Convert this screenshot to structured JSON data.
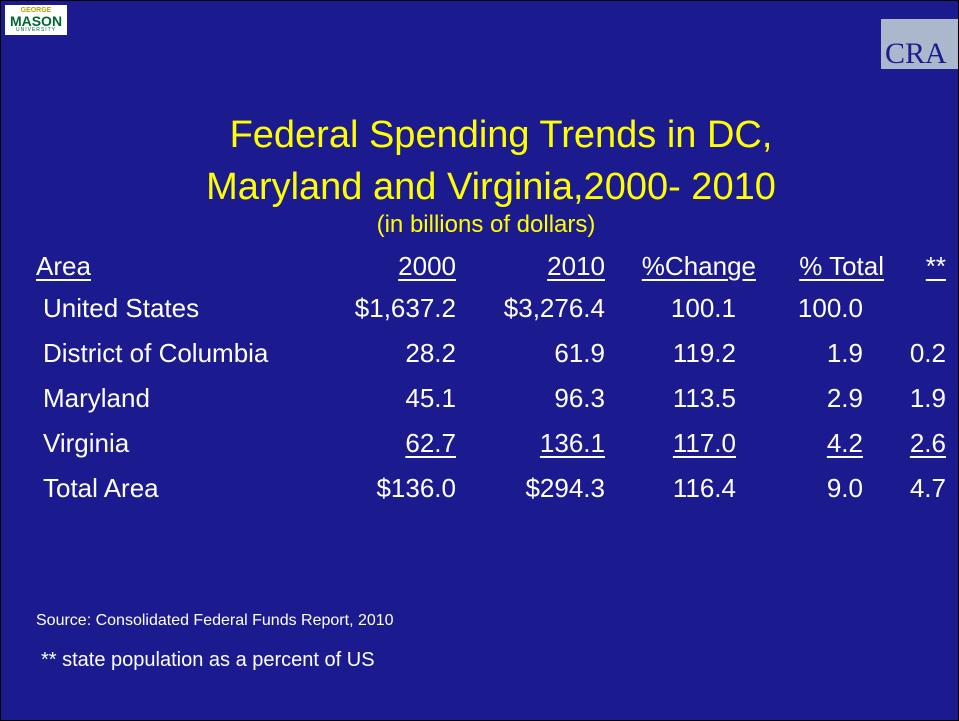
{
  "logos": {
    "left": {
      "top": "GEORGE",
      "main": "MASON",
      "bottom": "UNIVERSITY"
    },
    "right": "CRA"
  },
  "title": {
    "line1": "Federal Spending Trends in DC,",
    "line2": "Maryland and Virginia,2000- 2010",
    "subtitle": "(in billions of dollars)"
  },
  "table": {
    "header": [
      "Area",
      "2000",
      "2010",
      "%Change",
      "% Total",
      "**"
    ],
    "rows": [
      [
        "United States",
        "$1,637.2",
        "$3,276.4",
        "100.1",
        "100.0"
      ],
      [
        "District of Columbia",
        "28.2",
        "61.9",
        "119.2",
        "1.9",
        "0.2"
      ],
      [
        "Maryland",
        "45.1",
        "96.3",
        "113.5",
        "2.9",
        "1.9"
      ],
      [
        "Virginia",
        "62.7",
        "136.1",
        "117.0",
        "4.2",
        "2.6"
      ],
      [
        "Total Area",
        "$136.0",
        "$294.3",
        "116.4",
        "9.0",
        "4.7"
      ]
    ]
  },
  "source": "Source: Consolidated Federal Funds Report, 2010",
  "note": "** state population as a percent of US"
}
